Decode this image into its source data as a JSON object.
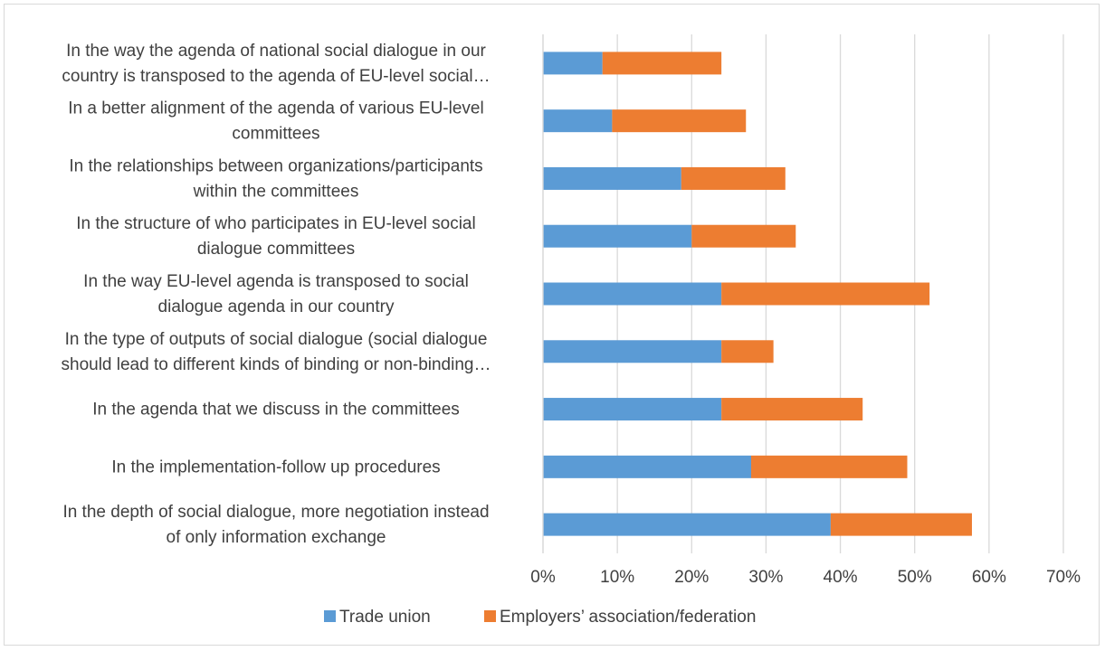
{
  "chart_data": {
    "type": "bar",
    "orientation": "horizontal",
    "stacked": true,
    "categories": [
      [
        "In the way the agenda of national social dialogue in our",
        "country is transposed to the agenda of EU-level social…"
      ],
      [
        "In a better alignment of the agenda of various EU-level",
        "committees"
      ],
      [
        "In the relationships between organizations/participants",
        "within the committees"
      ],
      [
        "In the structure of who participates in EU-level social",
        "dialogue committees"
      ],
      [
        "In the way EU-level agenda is transposed to social",
        "dialogue agenda in our country"
      ],
      [
        "In the type of outputs of social dialogue (social dialogue",
        "should lead to different kinds of binding or non-binding…"
      ],
      [
        "In the agenda that we discuss in the committees"
      ],
      [
        "In the implementation-follow up procedures"
      ],
      [
        "In the depth of social dialogue, more negotiation instead",
        "of only information exchange"
      ]
    ],
    "series": [
      {
        "name": "Trade union",
        "color": "#5b9bd5",
        "values": [
          8,
          9.3,
          18.6,
          20,
          24,
          24,
          24,
          28,
          38.7
        ]
      },
      {
        "name": "Employers’ association/federation",
        "color": "#ed7d31",
        "values": [
          16,
          18,
          14,
          14,
          28,
          7,
          19,
          21,
          19
        ]
      }
    ],
    "xlim": [
      0,
      70
    ],
    "xticks": [
      "0%",
      "10%",
      "20%",
      "30%",
      "40%",
      "50%",
      "60%",
      "70%"
    ],
    "grid": true,
    "legend": "bottom"
  }
}
